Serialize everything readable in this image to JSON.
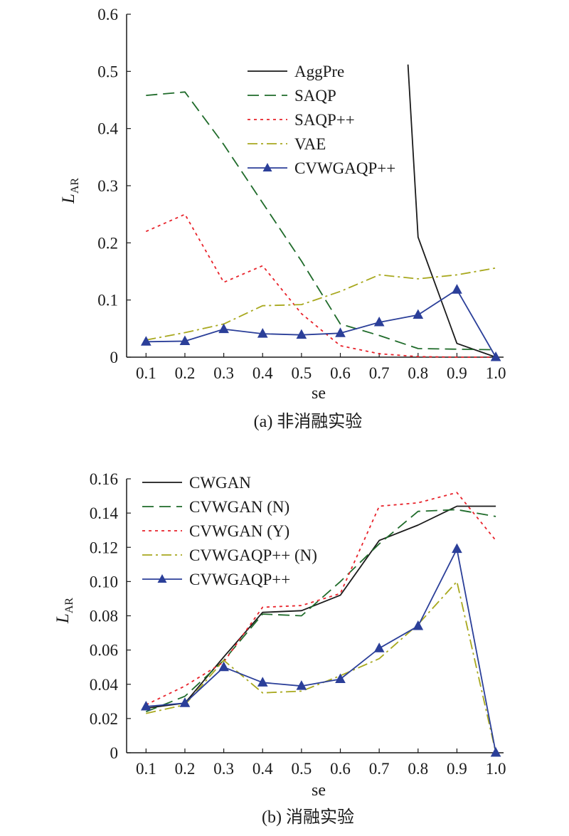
{
  "chart_data": [
    {
      "type": "line",
      "caption": "(a) 非消融实验",
      "xlabel": "se",
      "ylabel_main": "L",
      "ylabel_sub": "AR",
      "x": [
        0.1,
        0.2,
        0.3,
        0.4,
        0.5,
        0.6,
        0.7,
        0.8,
        0.9,
        1.0
      ],
      "x_tick_labels": [
        "0.1",
        "0.2",
        "0.3",
        "0.4",
        "0.5",
        "0.6",
        "0.7",
        "0.8",
        "0.9",
        "1.0"
      ],
      "xlim": [
        0.05,
        1.02
      ],
      "ylim": [
        0,
        0.6
      ],
      "y_ticks": [
        0,
        0.1,
        0.2,
        0.3,
        0.4,
        0.5,
        0.6
      ],
      "y_tick_labels": [
        "0",
        "0.1",
        "0.2",
        "0.3",
        "0.4",
        "0.5",
        "0.6"
      ],
      "grid": false,
      "legend_position": "top-center",
      "series": [
        {
          "name": "AggPre",
          "color": "#1a1a1a",
          "dash": "solid",
          "marker": "none",
          "points": [
            [
              0.774,
              0.512
            ],
            [
              0.8,
              0.21
            ],
            [
              0.9,
              0.024
            ],
            [
              1.0,
              0.0
            ]
          ]
        },
        {
          "name": "SAQP",
          "color": "#1f6b2a",
          "dash": "long-dash",
          "marker": "none",
          "points": [
            [
              0.1,
              0.458
            ],
            [
              0.2,
              0.464
            ],
            [
              0.3,
              0.372
            ],
            [
              0.4,
              0.27
            ],
            [
              0.5,
              0.168
            ],
            [
              0.6,
              0.058
            ],
            [
              0.7,
              0.038
            ],
            [
              0.8,
              0.015
            ],
            [
              0.9,
              0.014
            ],
            [
              1.0,
              0.013
            ]
          ]
        },
        {
          "name": "SAQP++",
          "color": "#e8222a",
          "dash": "dot",
          "marker": "none",
          "points": [
            [
              0.1,
              0.22
            ],
            [
              0.2,
              0.25
            ],
            [
              0.3,
              0.131
            ],
            [
              0.4,
              0.16
            ],
            [
              0.5,
              0.076
            ],
            [
              0.6,
              0.02
            ],
            [
              0.7,
              0.006
            ],
            [
              0.8,
              0.001
            ],
            [
              0.9,
              0.0
            ],
            [
              1.0,
              0.0
            ]
          ]
        },
        {
          "name": "VAE",
          "color": "#a8a81e",
          "dash": "dash-dot",
          "marker": "none",
          "points": [
            [
              0.1,
              0.03
            ],
            [
              0.2,
              0.043
            ],
            [
              0.3,
              0.058
            ],
            [
              0.4,
              0.09
            ],
            [
              0.5,
              0.092
            ],
            [
              0.6,
              0.115
            ],
            [
              0.7,
              0.144
            ],
            [
              0.8,
              0.137
            ],
            [
              0.9,
              0.144
            ],
            [
              1.0,
              0.156
            ]
          ]
        },
        {
          "name": "CVWGAQP++",
          "color": "#2b3f99",
          "dash": "solid",
          "marker": "triangle",
          "points": [
            [
              0.1,
              0.027
            ],
            [
              0.2,
              0.028
            ],
            [
              0.3,
              0.049
            ],
            [
              0.4,
              0.041
            ],
            [
              0.5,
              0.039
            ],
            [
              0.6,
              0.042
            ],
            [
              0.7,
              0.061
            ],
            [
              0.8,
              0.074
            ],
            [
              0.9,
              0.118
            ],
            [
              1.0,
              0.0
            ]
          ]
        }
      ]
    },
    {
      "type": "line",
      "caption": "(b) 消融实验",
      "xlabel": "se",
      "ylabel_main": "L",
      "ylabel_sub": "AR",
      "x": [
        0.1,
        0.2,
        0.3,
        0.4,
        0.5,
        0.6,
        0.7,
        0.8,
        0.9,
        1.0
      ],
      "x_tick_labels": [
        "0.1",
        "0.2",
        "0.3",
        "0.4",
        "0.5",
        "0.6",
        "0.7",
        "0.8",
        "0.9",
        "1.0"
      ],
      "xlim": [
        0.05,
        1.02
      ],
      "ylim": [
        0,
        0.16
      ],
      "y_ticks": [
        0,
        0.02,
        0.04,
        0.06,
        0.08,
        0.1,
        0.12,
        0.14,
        0.16
      ],
      "y_tick_labels": [
        "0",
        "0.02",
        "0.04",
        "0.06",
        "0.08",
        "0.10",
        "0.12",
        "0.14",
        "0.16"
      ],
      "grid": false,
      "legend_position": "top-left",
      "series": [
        {
          "name": "CWGAN",
          "color": "#1a1a1a",
          "dash": "solid",
          "marker": "none",
          "points": [
            [
              0.1,
              0.026
            ],
            [
              0.2,
              0.029
            ],
            [
              0.3,
              0.056
            ],
            [
              0.4,
              0.082
            ],
            [
              0.5,
              0.083
            ],
            [
              0.6,
              0.092
            ],
            [
              0.7,
              0.124
            ],
            [
              0.8,
              0.133
            ],
            [
              0.9,
              0.144
            ],
            [
              1.0,
              0.144
            ]
          ]
        },
        {
          "name": "CVWGAN (N)",
          "color": "#1f6b2a",
          "dash": "long-dash",
          "marker": "none",
          "points": [
            [
              0.1,
              0.024
            ],
            [
              0.2,
              0.033
            ],
            [
              0.3,
              0.054
            ],
            [
              0.4,
              0.081
            ],
            [
              0.5,
              0.08
            ],
            [
              0.6,
              0.1
            ],
            [
              0.7,
              0.122
            ],
            [
              0.8,
              0.141
            ],
            [
              0.9,
              0.142
            ],
            [
              1.0,
              0.138
            ]
          ]
        },
        {
          "name": "CVWGAN (Y)",
          "color": "#e8222a",
          "dash": "dot",
          "marker": "none",
          "points": [
            [
              0.1,
              0.028
            ],
            [
              0.2,
              0.039
            ],
            [
              0.3,
              0.053
            ],
            [
              0.4,
              0.085
            ],
            [
              0.5,
              0.086
            ],
            [
              0.6,
              0.093
            ],
            [
              0.7,
              0.144
            ],
            [
              0.8,
              0.146
            ],
            [
              0.9,
              0.152
            ],
            [
              1.0,
              0.124
            ]
          ]
        },
        {
          "name": "CVWGAQP++ (N)",
          "color": "#a8a81e",
          "dash": "dash-dot",
          "marker": "none",
          "points": [
            [
              0.1,
              0.023
            ],
            [
              0.2,
              0.028
            ],
            [
              0.3,
              0.054
            ],
            [
              0.4,
              0.035
            ],
            [
              0.5,
              0.036
            ],
            [
              0.6,
              0.045
            ],
            [
              0.7,
              0.055
            ],
            [
              0.8,
              0.075
            ],
            [
              0.9,
              0.1
            ],
            [
              1.0,
              0.0
            ]
          ]
        },
        {
          "name": "CVWGAQP++",
          "color": "#2b3f99",
          "dash": "solid",
          "marker": "triangle",
          "points": [
            [
              0.1,
              0.027
            ],
            [
              0.2,
              0.029
            ],
            [
              0.3,
              0.05
            ],
            [
              0.4,
              0.041
            ],
            [
              0.5,
              0.039
            ],
            [
              0.6,
              0.043
            ],
            [
              0.7,
              0.061
            ],
            [
              0.8,
              0.074
            ],
            [
              0.9,
              0.119
            ],
            [
              1.0,
              0.0
            ]
          ]
        }
      ]
    }
  ]
}
